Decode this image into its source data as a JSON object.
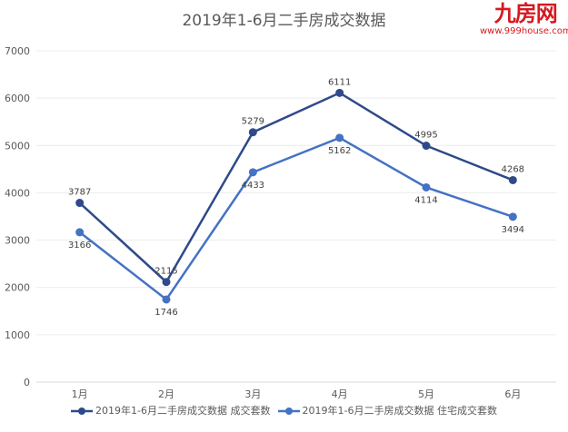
{
  "chart_data": {
    "type": "line",
    "title": "2019年1-6月二手房成交数据",
    "categories": [
      "1月",
      "2月",
      "3月",
      "4月",
      "5月",
      "6月"
    ],
    "ylim": [
      0,
      7000
    ],
    "yticks": [
      0,
      1000,
      2000,
      3000,
      4000,
      5000,
      6000,
      7000
    ],
    "grid": true,
    "legend_position": "bottom",
    "series": [
      {
        "name": "2019年1-6月二手房成交数据 成交套数",
        "values": [
          3787,
          2115,
          5279,
          6111,
          4995,
          4268
        ],
        "color": "#2e4a8a"
      },
      {
        "name": "2019年1-6月二手房成交数据 住宅成交套数",
        "values": [
          3166,
          1746,
          4433,
          5162,
          4114,
          3494
        ],
        "color": "#4472c4"
      }
    ]
  },
  "watermark": {
    "logo": "九房网",
    "url": "www.999house.com"
  }
}
